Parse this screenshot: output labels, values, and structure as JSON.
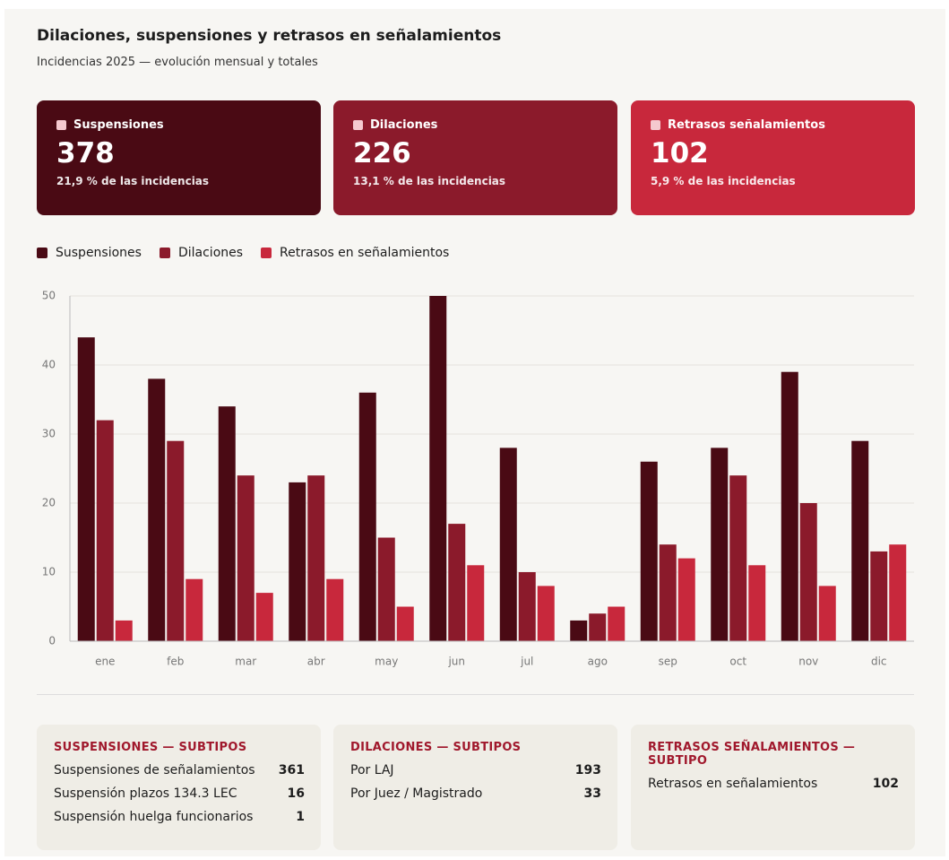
{
  "header": {
    "title": "Dilaciones, suspensiones y retrasos en señalamientos",
    "subtitle": "Incidencias 2025 — evolución mensual y totales"
  },
  "kpis": [
    {
      "label": "Suspensiones",
      "value": 378,
      "share": "21,9 % de las incidencias",
      "color": "#4a0a14"
    },
    {
      "label": "Dilaciones",
      "value": 226,
      "share": "13,1 % de las incidencias",
      "color": "#8b1a2b"
    },
    {
      "label": "Retrasos señalamientos",
      "value": 102,
      "share": "5,9 % de las incidencias",
      "color": "#c8283c"
    }
  ],
  "chart_data": {
    "type": "bar",
    "categories": [
      "ene",
      "feb",
      "mar",
      "abr",
      "may",
      "jun",
      "jul",
      "ago",
      "sep",
      "oct",
      "nov",
      "dic"
    ],
    "series": [
      {
        "name": "Suspensiones",
        "color": "#4a0a14",
        "values": [
          44,
          38,
          34,
          23,
          36,
          50,
          28,
          3,
          26,
          28,
          39,
          29
        ]
      },
      {
        "name": "Dilaciones",
        "color": "#8b1a2b",
        "values": [
          32,
          29,
          24,
          24,
          15,
          17,
          10,
          4,
          14,
          24,
          20,
          13
        ]
      },
      {
        "name": "Retrasos en señalamientos",
        "color": "#c8283c",
        "values": [
          3,
          9,
          7,
          9,
          5,
          11,
          8,
          5,
          12,
          11,
          8,
          14
        ]
      }
    ],
    "ylim": [
      0,
      50
    ],
    "yticks": [
      0,
      10,
      20,
      30,
      40,
      50
    ],
    "grid": true,
    "legend": "top"
  },
  "subtypes": [
    {
      "title": "SUSPENSIONES — SUBTIPOS",
      "rows": [
        [
          "Suspensiones de señalamientos",
          361
        ],
        [
          "Suspensión plazos 134.3 LEC",
          16
        ],
        [
          "Suspensión huelga funcionarios",
          1
        ]
      ]
    },
    {
      "title": "DILACIONES — SUBTIPOS",
      "rows": [
        [
          "Por LAJ",
          193
        ],
        [
          "Por Juez / Magistrado",
          33
        ]
      ]
    },
    {
      "title": "RETRASOS SEÑALAMIENTOS — SUBTIPO",
      "rows": [
        [
          "Retrasos en señalamientos",
          102
        ]
      ]
    }
  ]
}
